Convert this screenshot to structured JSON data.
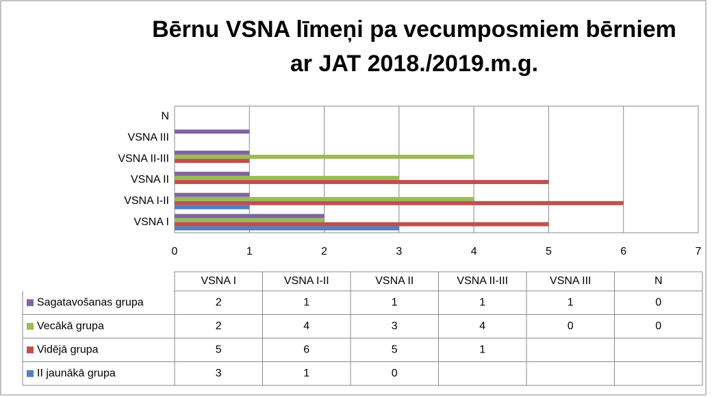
{
  "chart_data": {
    "type": "bar",
    "orientation": "horizontal",
    "title": [
      "Bērnu VSNA līmeņi pa vecumposmiem bērniem",
      "ar JAT  2018./2019.m.g."
    ],
    "categories": [
      "VSNA I",
      "VSNA I-II",
      "VSNA II",
      "VSNA II-III",
      "VSNA III",
      "N"
    ],
    "series": [
      {
        "name": "Sagatavošanas grupa",
        "color": "#8064a2",
        "values": [
          2,
          1,
          1,
          1,
          1,
          0
        ]
      },
      {
        "name": "Vecākā grupa",
        "color": "#9bbb59",
        "values": [
          2,
          4,
          3,
          4,
          0,
          0
        ]
      },
      {
        "name": "Vidējā grupa",
        "color": "#c0504d",
        "values": [
          5,
          6,
          5,
          1,
          null,
          null
        ]
      },
      {
        "name": "II jaunākā grupa",
        "color": "#4f81bd",
        "values": [
          3,
          1,
          0,
          null,
          null,
          null
        ]
      }
    ],
    "xlim": [
      0,
      7
    ],
    "xticks": [
      0,
      1,
      2,
      3,
      4,
      5,
      6,
      7
    ],
    "grid": true,
    "data_table": true
  }
}
